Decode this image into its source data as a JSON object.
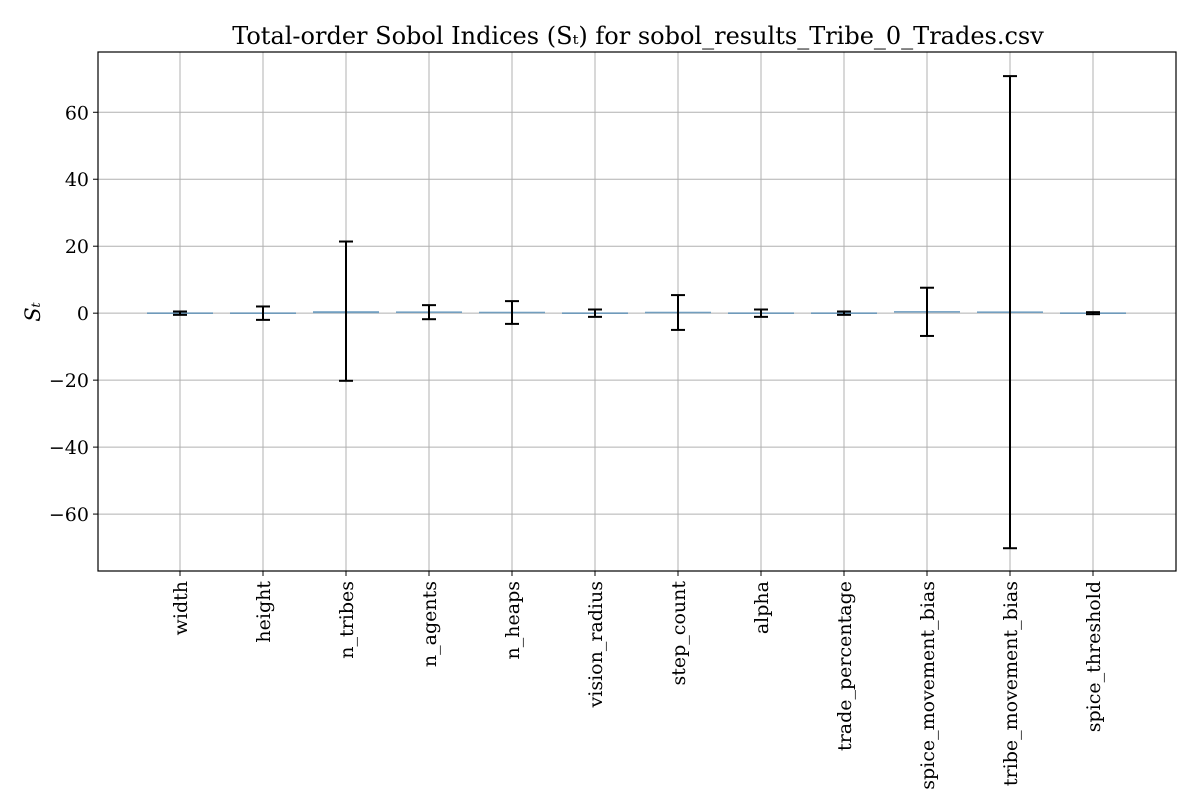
{
  "chart_data": {
    "type": "bar",
    "title": "Total-order Sobol Indices (Sₜ) for sobol_results_Tribe_0_Trades.csv",
    "ylabel": "Sₜ",
    "xlabel": "",
    "categories": [
      "width",
      "height",
      "n_tribes",
      "n_agents",
      "n_heaps",
      "vision_radius",
      "step_count",
      "alpha",
      "trade_percentage",
      "spice_movement_bias",
      "tribe_movement_bias",
      "spice_threshold"
    ],
    "values": [
      0.0,
      0.0,
      0.6,
      0.3,
      0.2,
      0.0,
      0.2,
      0.0,
      0.0,
      0.4,
      0.3,
      0.0
    ],
    "errors": [
      0.5,
      2.0,
      20.8,
      2.1,
      3.4,
      1.1,
      5.2,
      1.1,
      0.5,
      7.2,
      70.5,
      0.3
    ],
    "ylim": [
      -77,
      78
    ],
    "yticks": [
      -60,
      -40,
      -20,
      0,
      20,
      40,
      60
    ],
    "ytick_labels": [
      "−60",
      "−40",
      "−20",
      "0",
      "20",
      "40",
      "60"
    ],
    "grid": true,
    "colors": {
      "bar": "#4c87b3",
      "error": "#000000",
      "grid": "#b0b0b0"
    }
  }
}
